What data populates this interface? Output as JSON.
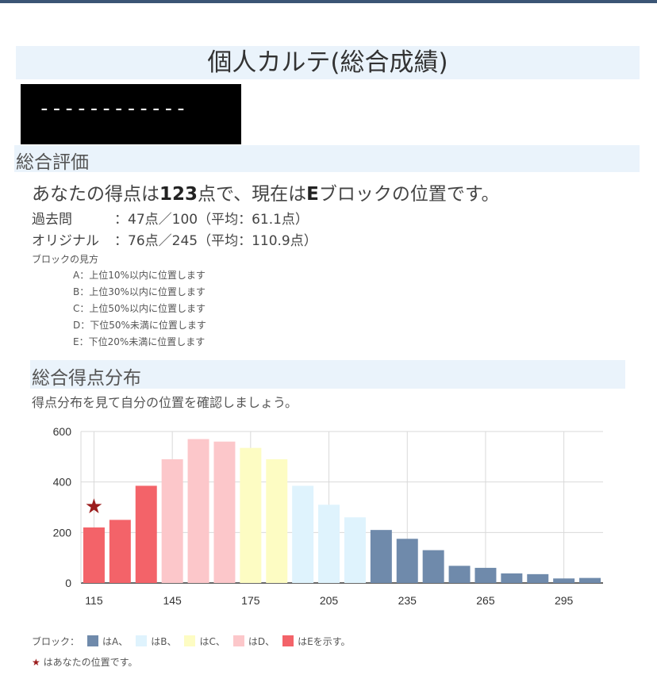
{
  "title": "個人カルテ(総合成績)",
  "redacted_text": "------------",
  "section_overall": "総合評価",
  "lead": {
    "pre": "あなたの得点は",
    "score": "123",
    "mid": "点で、現在は",
    "block": "E",
    "post": "ブロックの位置です。"
  },
  "rows": [
    {
      "label": "過去問",
      "value": "：47点／100（平均：61.1点）"
    },
    {
      "label": "オリジナル",
      "value": "：76点／245（平均：110.9点）"
    }
  ],
  "block_guide": {
    "heading": "ブロックの見方",
    "items": [
      "A：上位10%以内に位置します",
      "B：上位30%以内に位置します",
      "C：上位50%以内に位置します",
      "D：下位50%未満に位置します",
      "E：下位20%未満に位置します"
    ]
  },
  "section_dist": "総合得点分布",
  "dist_sub": "得点分布を見て自分の位置を確認しましょう。",
  "legend": {
    "prefix": "ブロック：",
    "items": [
      "はA、",
      "はB、",
      "はC、",
      "はD、",
      "はEを示す。"
    ],
    "star_text": "はあなたの位置です。"
  },
  "colors": {
    "A": "#6f8aab",
    "B": "#dff3fd",
    "C": "#fdfcc3",
    "D": "#fcc7ca",
    "E": "#f36369",
    "star": "#9b1c1c"
  },
  "chart_data": {
    "type": "bar",
    "x": [
      115,
      125,
      135,
      145,
      155,
      165,
      175,
      185,
      195,
      205,
      215,
      225,
      235,
      245,
      255,
      265,
      275,
      285,
      295,
      305
    ],
    "values": [
      220,
      250,
      385,
      490,
      570,
      560,
      535,
      490,
      385,
      310,
      260,
      210,
      175,
      130,
      68,
      60,
      38,
      35,
      18,
      20
    ],
    "blocks": [
      "E",
      "E",
      "E",
      "D",
      "D",
      "D",
      "C",
      "C",
      "B",
      "B",
      "B",
      "A",
      "A",
      "A",
      "A",
      "A",
      "A",
      "A",
      "A",
      "A"
    ],
    "x_ticks": [
      115,
      145,
      175,
      205,
      235,
      265,
      295
    ],
    "y_ticks": [
      0,
      200,
      400,
      600
    ],
    "ylim": [
      0,
      600
    ],
    "you_marker_x": 115,
    "you_marker_y": 305
  }
}
